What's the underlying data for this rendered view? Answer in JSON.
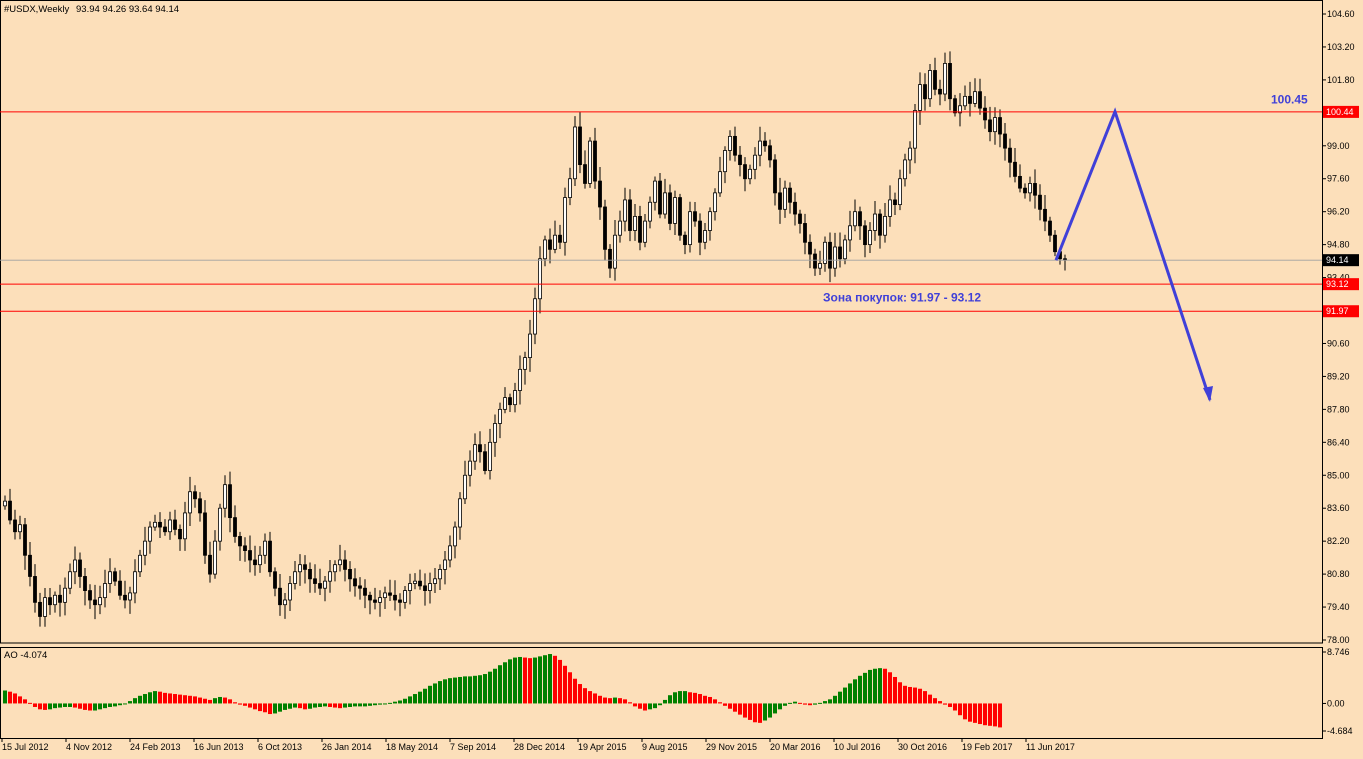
{
  "header": {
    "symbol": "#USDX,Weekly",
    "ohlc": "93.94 94.26 93.64 94.14"
  },
  "oscillator": {
    "title": "AO -4.074",
    "ticks": [
      "8.746",
      "0.00",
      "-4.684"
    ]
  },
  "annotations": {
    "target_label": "100.45",
    "zone_label": "Зона покупок: 91.97 - 93.12"
  },
  "colors": {
    "background": "#fcdfba",
    "line": "#ff0000",
    "arrow": "#4040d8",
    "candle": "#000000",
    "ao_up": "#008000",
    "ao_down": "#ff0000"
  },
  "chart_data": [
    {
      "type": "candlestick",
      "ylim": [
        78.0,
        104.6
      ],
      "y_ticks": [
        "104.60",
        "103.20",
        "101.80",
        "100.40",
        "99.00",
        "97.60",
        "96.20",
        "94.80",
        "93.40",
        "92.00",
        "90.60",
        "89.20",
        "87.80",
        "86.40",
        "85.00",
        "83.60",
        "82.20",
        "80.80",
        "79.40",
        "78.00"
      ],
      "x_ticks": [
        "15 Jul 2012",
        "4 Nov 2012",
        "24 Feb 2013",
        "16 Jun 2013",
        "6 Oct 2013",
        "26 Jan 2014",
        "18 May 2014",
        "7 Sep 2014",
        "28 Dec 2014",
        "19 Apr 2015",
        "9 Aug 2015",
        "29 Nov 2015",
        "20 Mar 2016",
        "10 Jul 2016",
        "30 Oct 2016",
        "19 Feb 2017",
        "11 Jun 2017"
      ],
      "last_price": "94.14",
      "levels": [
        "100.44",
        "93.12",
        "91.97"
      ],
      "forecast_path": [
        94.14,
        100.45,
        88.2
      ],
      "closes": [
        83.9,
        83.1,
        82.6,
        82.9,
        81.6,
        80.7,
        79.6,
        79.0,
        79.8,
        79.5,
        79.9,
        79.6,
        80.2,
        80.9,
        81.4,
        80.7,
        80.1,
        79.7,
        79.5,
        79.8,
        80.4,
        80.9,
        80.5,
        79.9,
        79.7,
        80.0,
        80.9,
        81.6,
        82.2,
        82.8,
        83.0,
        82.8,
        82.6,
        83.1,
        82.7,
        82.3,
        83.4,
        84.3,
        84.0,
        83.4,
        81.6,
        80.8,
        82.2,
        83.6,
        84.6,
        83.2,
        82.4,
        82.0,
        81.8,
        81.4,
        81.2,
        81.6,
        82.2,
        80.9,
        80.2,
        79.5,
        79.7,
        80.4,
        80.9,
        81.2,
        81.0,
        80.6,
        80.4,
        80.2,
        80.5,
        80.9,
        81.2,
        81.4,
        81.0,
        80.6,
        80.3,
        80.2,
        79.9,
        79.7,
        79.6,
        79.8,
        80.0,
        79.9,
        79.7,
        79.6,
        80.1,
        80.4,
        80.5,
        80.3,
        80.1,
        80.4,
        80.6,
        81.0,
        81.4,
        82.0,
        82.8,
        84.0,
        85.0,
        85.6,
        86.3,
        86.0,
        85.2,
        86.4,
        87.2,
        87.8,
        88.3,
        88.0,
        88.6,
        89.5,
        90.0,
        91.0,
        92.5,
        94.2,
        95.0,
        94.6,
        95.2,
        94.9,
        96.8,
        97.6,
        99.8,
        98.2,
        97.4,
        99.2,
        97.5,
        96.4,
        94.6,
        93.8,
        95.2,
        95.8,
        96.7,
        95.4,
        96.0,
        94.9,
        95.8,
        96.6,
        97.5,
        96.1,
        97.0,
        95.7,
        96.8,
        95.2,
        94.8,
        96.2,
        95.8,
        94.9,
        95.4,
        96.2,
        97.0,
        97.9,
        98.8,
        99.4,
        98.6,
        98.2,
        97.6,
        98.0,
        98.6,
        99.2,
        99.0,
        98.4,
        97.0,
        96.3,
        97.2,
        96.6,
        96.1,
        95.7,
        94.9,
        94.4,
        93.8,
        94.0,
        94.9,
        93.8,
        94.7,
        94.2,
        95.0,
        95.6,
        96.2,
        95.6,
        94.8,
        95.4,
        96.1,
        95.2,
        96.0,
        96.7,
        96.5,
        97.6,
        98.4,
        98.9,
        100.5,
        101.6,
        101.0,
        102.2,
        101.4,
        101.2,
        102.5,
        101.0,
        100.4,
        100.7,
        101.1,
        100.8,
        101.3,
        100.6,
        100.1,
        99.6,
        100.2,
        99.5,
        98.9,
        98.3,
        97.7,
        97.2,
        97.0,
        97.4,
        96.9,
        96.3,
        95.8,
        95.2,
        94.5,
        94.2,
        94.14
      ]
    },
    {
      "type": "bar",
      "title": "AO -4.074",
      "ylim": [
        -4.684,
        8.746
      ],
      "values": [
        2.2,
        2.0,
        1.7,
        1.2,
        0.7,
        0.1,
        -0.6,
        -1.0,
        -1.1,
        -1.0,
        -0.8,
        -0.7,
        -0.6,
        -0.6,
        -0.7,
        -0.9,
        -1.1,
        -1.2,
        -1.2,
        -1.0,
        -0.8,
        -0.6,
        -0.5,
        -0.3,
        0.0,
        0.4,
        0.9,
        1.3,
        1.6,
        1.9,
        2.1,
        2.0,
        1.8,
        1.7,
        1.6,
        1.5,
        1.4,
        1.3,
        1.2,
        1.0,
        0.8,
        0.6,
        0.9,
        1.1,
        1.0,
        0.7,
        0.2,
        -0.2,
        -0.4,
        -0.7,
        -1.0,
        -1.3,
        -1.5,
        -1.8,
        -1.7,
        -1.4,
        -1.1,
        -0.9,
        -0.7,
        -0.8,
        -1.0,
        -0.9,
        -0.7,
        -0.6,
        -0.5,
        -0.6,
        -0.7,
        -0.8,
        -0.7,
        -0.6,
        -0.5,
        -0.5,
        -0.5,
        -0.4,
        -0.3,
        -0.2,
        -0.1,
        0.1,
        0.3,
        0.5,
        0.8,
        1.2,
        1.6,
        2.0,
        2.5,
        3.0,
        3.4,
        3.8,
        4.1,
        4.3,
        4.4,
        4.5,
        4.6,
        4.6,
        4.7,
        4.8,
        5.0,
        5.4,
        5.9,
        6.5,
        7.0,
        7.5,
        7.8,
        7.9,
        7.8,
        7.7,
        7.8,
        8.0,
        8.2,
        8.4,
        8.1,
        7.4,
        6.4,
        5.3,
        4.2,
        3.3,
        2.6,
        2.1,
        1.7,
        1.3,
        1.0,
        0.9,
        1.0,
        0.9,
        0.7,
        0.2,
        -0.5,
        -0.9,
        -1.2,
        -1.0,
        -0.8,
        -0.3,
        0.6,
        1.4,
        1.9,
        2.1,
        2.1,
        1.9,
        1.8,
        1.6,
        1.3,
        1.1,
        0.7,
        0.2,
        -0.4,
        -0.9,
        -1.4,
        -1.9,
        -2.4,
        -2.8,
        -3.2,
        -3.3,
        -2.9,
        -2.4,
        -1.7,
        -1.0,
        -0.4,
        0.1,
        0.3,
        0.1,
        -0.2,
        -0.3,
        -0.2,
        0.1,
        0.4,
        0.7,
        1.3,
        2.0,
        2.7,
        3.4,
        4.1,
        4.7,
        5.2,
        5.7,
        5.9,
        6.0,
        5.9,
        5.3,
        4.5,
        3.6,
        3.0,
        2.8,
        2.7,
        2.5,
        2.1,
        1.5,
        0.9,
        0.4,
        -0.2,
        -0.6,
        -1.2,
        -2.0,
        -2.7,
        -3.1,
        -3.3,
        -3.5,
        -3.7,
        -3.8,
        -3.9,
        -4.074
      ]
    }
  ]
}
